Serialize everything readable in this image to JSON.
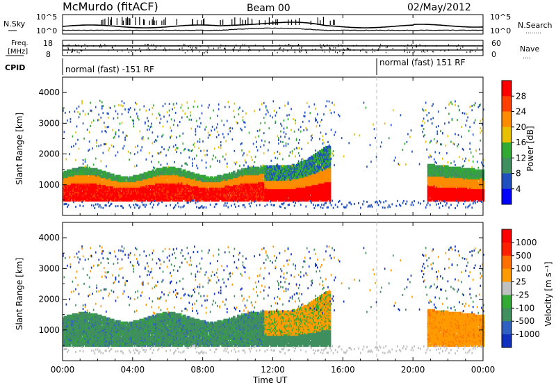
{
  "header": {
    "station": "McMurdo (fitACF)",
    "beam": "Beam 00",
    "date": "02/May/2012"
  },
  "noise_panel": {
    "left_label": "N.Sky",
    "right_label": "N.Search",
    "right_legend": "........",
    "left_ticks": [
      "10^5",
      "10^0"
    ],
    "right_ticks": [
      "10^5",
      "10^0"
    ]
  },
  "freq_panel": {
    "left_label_line1": "Freq.",
    "left_label_line2": "[MHz]",
    "right_label": "Nave",
    "right_legend": "....",
    "left_ticks": [
      "18",
      "8"
    ],
    "right_ticks": [
      "60",
      "0"
    ]
  },
  "cpid_panel": {
    "label": "CPID",
    "mode1": "normal (fast) -151 RF",
    "mode2": "normal (fast) 151 RF"
  },
  "x_axis": {
    "label": "Time UT",
    "ticks": [
      "00:00",
      "04:00",
      "08:00",
      "12:00",
      "16:00",
      "20:00",
      "00:00"
    ]
  },
  "colors": {
    "red": "#ff0000",
    "orange": "#ff8c00",
    "yellow": "#e8c000",
    "green": "#33aa33",
    "seagreen": "#3f8f5f",
    "blue": "#2050c0",
    "grey": "#c0c0c0"
  },
  "chart_data": [
    {
      "type": "heatmap",
      "panel": "power",
      "ylabel": "Slant Range [km]",
      "yticks": [
        "1000",
        "2000",
        "3000",
        "4000"
      ],
      "ylim": [
        0,
        4500
      ],
      "xlim": [
        0,
        24
      ],
      "colorbar_label": "Power [dB]",
      "colorbar_ticks": [
        "4",
        "8",
        "12",
        "16",
        "20",
        "24",
        "28"
      ],
      "colorbar_colors": [
        "#0000ff",
        "#2050c0",
        "#3f8f5f",
        "#33aa33",
        "#e8c000",
        "#ff8c00",
        "#ff4000",
        "#ff0000"
      ]
    },
    {
      "type": "heatmap",
      "panel": "velocity",
      "ylabel": "Slant Range [km]",
      "yticks": [
        "1000",
        "2000",
        "3000",
        "4000"
      ],
      "ylim": [
        0,
        4500
      ],
      "xlim": [
        0,
        24
      ],
      "colorbar_label": "Velocity [m s⁻¹]",
      "colorbar_ticks": [
        "1000",
        "500",
        "100",
        "25",
        "-25",
        "-100",
        "-500",
        "-1000"
      ],
      "colorbar_colors": [
        "#1030c0",
        "#3060c0",
        "#3f8f5f",
        "#33aa33",
        "#c0c0c0",
        "#ff9a00",
        "#ff7000",
        "#ff2000",
        "#ff0000"
      ]
    }
  ]
}
